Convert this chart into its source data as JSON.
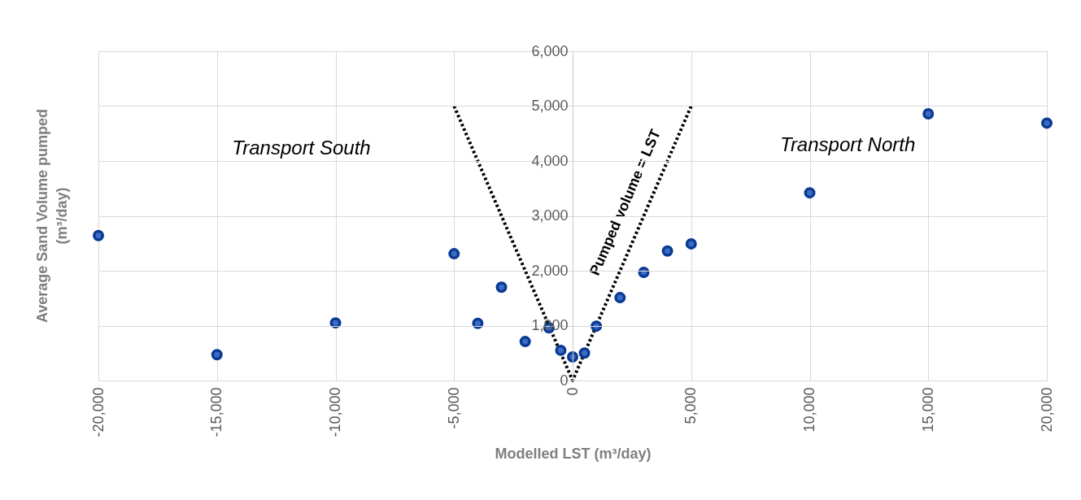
{
  "chart_data": {
    "type": "scatter",
    "xlabel": "Modelled LST (m³/day)",
    "ylabel": "Average Sand Volume pumped (m³/day)",
    "series": [
      {
        "color": "#0b3a94",
        "x": [
          -20000,
          -15000,
          -10000,
          -5000,
          -4000,
          -3000,
          -2000,
          -1000,
          -500,
          0,
          500,
          1000,
          2000,
          3000,
          4000,
          5000,
          10000,
          15000,
          20000
        ],
        "values": [
          2640,
          470,
          1050,
          2310,
          1040,
          1700,
          710,
          960,
          550,
          430,
          500,
          990,
          1510,
          1970,
          2360,
          2490,
          3420,
          4860,
          4690
        ]
      },
      {
        "type": "line",
        "color": "#000000",
        "line_style": "dotted",
        "marker": "none",
        "x": [
          -5000,
          0,
          5000
        ],
        "values": [
          5000,
          0,
          5000
        ]
      }
    ],
    "xlim": [
      -20000,
      20000
    ],
    "xticks": [
      {
        "value": -20000,
        "label": "-20,000"
      },
      {
        "value": -15000,
        "label": "-15,000"
      },
      {
        "value": -10000,
        "label": "-10,000"
      },
      {
        "value": -5000,
        "label": "-5,000"
      },
      0,
      {
        "value": 5000,
        "label": "5,000"
      },
      {
        "value": 10000,
        "label": "10,000"
      },
      {
        "value": 15000,
        "label": "15,000"
      },
      {
        "value": 20000,
        "label": "20,000"
      }
    ],
    "ylim": [
      0,
      6000
    ],
    "yticks": [
      0,
      {
        "value": 1000,
        "label": "1,000"
      },
      {
        "value": 2000,
        "label": "2,000"
      },
      {
        "value": 3000,
        "label": "3,000"
      },
      {
        "value": 4000,
        "label": "4,000"
      },
      {
        "value": 5000,
        "label": "5,000"
      },
      {
        "value": 6000,
        "label": "6,000"
      }
    ],
    "grid": true,
    "marker": "circle",
    "annotations": [
      "Transport South",
      "Pumped volume = LST",
      "Transport North"
    ]
  }
}
